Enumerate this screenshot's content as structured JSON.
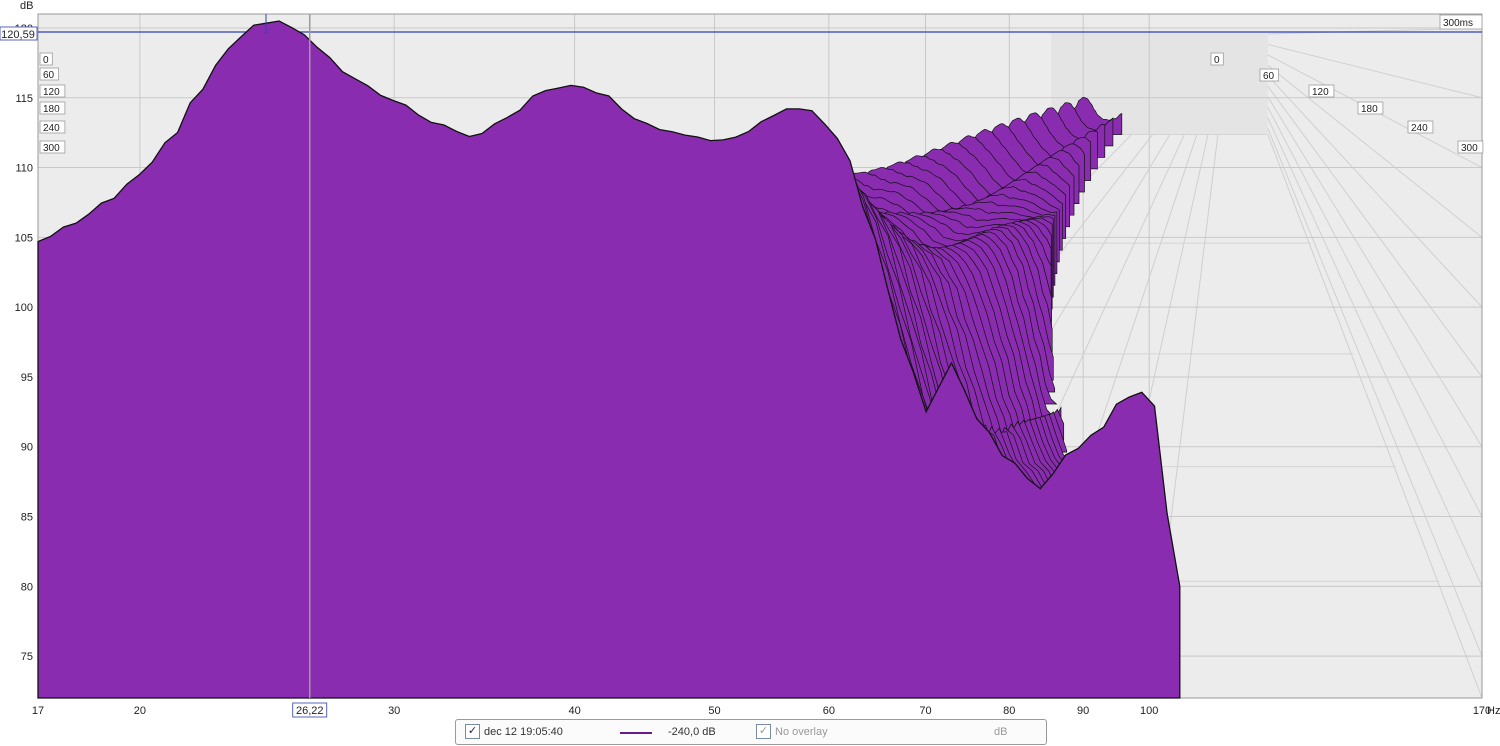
{
  "chart_data": {
    "type": "area",
    "subtype": "waterfall",
    "ylabel": "dB",
    "xunit": "Hz",
    "x_scale": "log",
    "xlim": [
      17,
      170
    ],
    "ylim": [
      72,
      121
    ],
    "x_ticks": [
      "17",
      "20",
      "30",
      "40",
      "50",
      "60",
      "70",
      "80",
      "90",
      "100",
      "170"
    ],
    "y_ticks": [
      "75",
      "80",
      "85",
      "90",
      "95",
      "100",
      "105",
      "110",
      "115",
      "120"
    ],
    "time_unit": "ms",
    "time_ticks": [
      "0",
      "60",
      "120",
      "180",
      "240",
      "300"
    ],
    "time_end_label": "300ms",
    "cursor_x_label": "26,22",
    "cursor_y_label": "120,59",
    "slice_count": 48,
    "fill_color": "#8a2cb0",
    "edge_color": "#111111",
    "front_curve": {
      "freq": [
        17,
        18,
        19,
        20,
        21,
        22,
        23,
        24,
        25,
        26,
        27,
        28,
        30,
        32,
        34,
        36,
        38,
        40,
        42,
        44,
        46,
        48,
        50,
        52,
        54,
        56,
        58,
        60,
        62,
        64,
        66,
        68,
        70,
        73,
        76,
        80,
        84,
        88,
        92,
        96,
        100,
        105
      ],
      "db": [
        104.7,
        106.0,
        107.6,
        109.5,
        112.0,
        115.5,
        118.5,
        120.2,
        120.5,
        119.5,
        117.9,
        116.4,
        114.8,
        113.2,
        112.2,
        113.6,
        115.5,
        115.9,
        115.2,
        113.5,
        112.7,
        112.3,
        111.9,
        112.2,
        113.3,
        114.2,
        114.2,
        113.0,
        110.5,
        106.0,
        101.2,
        96.3,
        92.5,
        96.0,
        92.0,
        89.0,
        87.0,
        89.5,
        91.0,
        93.5,
        94.0,
        80.0
      ]
    }
  },
  "legend": {
    "trace_checked": true,
    "trace_label": "dec 12 19:05:40",
    "trace_value": "-240,0 dB",
    "overlay_checked": true,
    "overlay_label": "No overlay",
    "overlay_value": "dB",
    "trace_color": "#6a1b8a"
  }
}
